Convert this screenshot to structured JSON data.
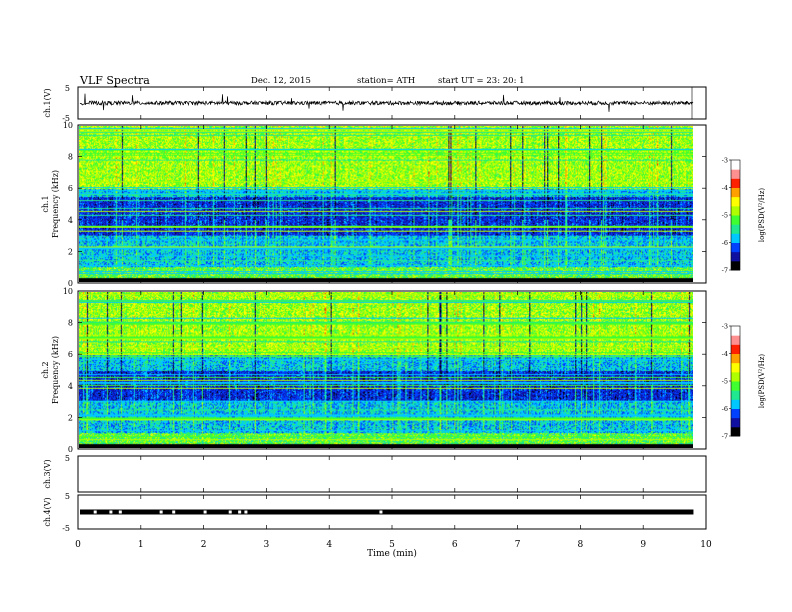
{
  "header": {
    "title": "VLF  Spectra",
    "date": "Dec. 12, 2015",
    "station": "station= ATH",
    "start": "start  UT  =     23: 20: 1"
  },
  "colorbar": {
    "label": "log(PSD(V²/Hz)",
    "ticks": [
      "-3",
      "-4",
      "-5",
      "-6",
      "-7"
    ],
    "colors": [
      "#000000",
      "#1010a0",
      "#0040ff",
      "#00c8ff",
      "#20e890",
      "#40ff30",
      "#b0ff00",
      "#ffff00",
      "#ffa000",
      "#ff2000",
      "#ff9090",
      "#ffffff"
    ]
  },
  "chart_data": [
    {
      "type": "line",
      "ylabel": "ch.1(V)",
      "yticks": [
        "5",
        "-5"
      ],
      "ylim": [
        -5,
        5
      ],
      "baseline": 0,
      "noise_amplitude": 0.6,
      "spike_amplitude": 3
    },
    {
      "type": "heatmap",
      "ylabel_channel": "ch.1",
      "ylabel": "Frequency  (kHz)",
      "yticks": [
        "0",
        "2",
        "4",
        "6",
        "8",
        "10"
      ],
      "ylim": [
        0,
        10
      ],
      "xlim": [
        0,
        9.8
      ],
      "zlim": [
        -7,
        -3
      ],
      "quiet_band_khz": [
        3,
        5.5
      ]
    },
    {
      "type": "heatmap",
      "ylabel_channel": "ch.2",
      "ylabel": "Frequency  (kHz)",
      "yticks": [
        "0",
        "2",
        "4",
        "6",
        "8",
        "10"
      ],
      "ylim": [
        0,
        10
      ],
      "xlim": [
        0,
        9.8
      ],
      "zlim": [
        -7,
        -3
      ],
      "quiet_band_khz": [
        3,
        5
      ]
    },
    {
      "type": "line",
      "ylabel": "ch.3(V)",
      "yticks": [
        "5",
        ""
      ],
      "ylim": [
        -5,
        5
      ],
      "empty": true
    },
    {
      "type": "line",
      "ylabel": "ch.4(V)",
      "yticks": [
        "5",
        "-5"
      ],
      "ylim": [
        -5,
        5
      ],
      "baseline": 0,
      "gaps_min": [
        0.25,
        0.5,
        0.65,
        1.3,
        1.5,
        2.0,
        2.4,
        2.55,
        2.65,
        4.8
      ]
    }
  ],
  "xaxis": {
    "label": "Time  (min)",
    "ticks": [
      "0",
      "1",
      "2",
      "3",
      "4",
      "5",
      "6",
      "7",
      "8",
      "9",
      "10"
    ],
    "xlim": [
      0,
      10
    ],
    "data_end": 9.8
  }
}
